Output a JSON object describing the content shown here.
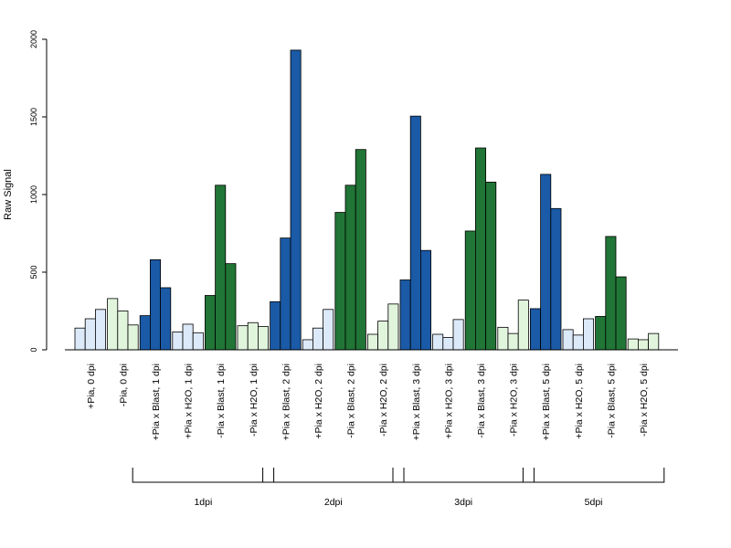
{
  "chart_data": {
    "type": "bar",
    "title": "",
    "xlabel": "",
    "ylabel": "Raw Signal",
    "ylim": [
      0,
      2000
    ],
    "yticks": [
      0,
      500,
      1000,
      1500,
      2000
    ],
    "grid": false,
    "categories": [
      "+Pia, 0 dpi",
      "-Pia, 0 dpi",
      "+Pia x Blast, 1 dpi",
      "+Pia x H2O, 1 dpi",
      "-Pia x Blast, 1 dpi",
      "-Pia x H2O, 1 dpi",
      "+Pia x Blast, 2 dpi",
      "+Pia x H2O, 2 dpi",
      "-Pia x Blast, 2 dpi",
      "-Pia x H2O, 2 dpi",
      "+Pia x Blast, 3 dpi",
      "+Pia x H2O, 3 dpi",
      "-Pia x Blast, 3 dpi",
      "-Pia x H2O, 3 dpi",
      "+Pia x Blast, 5 dpi",
      "+Pia x H2O, 5 dpi",
      "-Pia x Blast, 5 dpi",
      "-Pia x H2O, 5 dpi"
    ],
    "replicates": [
      [
        140,
        200,
        260
      ],
      [
        330,
        250,
        160
      ],
      [
        220,
        580,
        400
      ],
      [
        115,
        165,
        110
      ],
      [
        350,
        1060,
        555
      ],
      [
        155,
        175,
        150
      ],
      [
        310,
        720,
        1930
      ],
      [
        65,
        140,
        260
      ],
      [
        885,
        1060,
        1290
      ],
      [
        100,
        185,
        295
      ],
      [
        450,
        1505,
        640
      ],
      [
        100,
        80,
        195
      ],
      [
        765,
        1300,
        1080
      ],
      [
        145,
        105,
        320
      ],
      [
        265,
        1130,
        910
      ],
      [
        130,
        95,
        200
      ],
      [
        215,
        730,
        470
      ],
      [
        70,
        65,
        105
      ]
    ],
    "bar_colors": [
      "light-blue",
      "light-green",
      "dark-blue",
      "light-blue",
      "dark-green",
      "light-green",
      "dark-blue",
      "light-blue",
      "dark-green",
      "light-green",
      "dark-blue",
      "light-blue",
      "dark-green",
      "light-green",
      "dark-blue",
      "light-blue",
      "dark-green",
      "light-green"
    ],
    "palette": {
      "dark-blue": "#1a5aa6",
      "light-blue": "#dce9f8",
      "dark-green": "#217536",
      "light-green": "#e1f5dc"
    },
    "groups": [
      {
        "label": "1dpi",
        "from": 2,
        "to": 5
      },
      {
        "label": "2dpi",
        "from": 6,
        "to": 9
      },
      {
        "label": "3dpi",
        "from": 10,
        "to": 13
      },
      {
        "label": "5dpi",
        "from": 14,
        "to": 17
      }
    ]
  }
}
